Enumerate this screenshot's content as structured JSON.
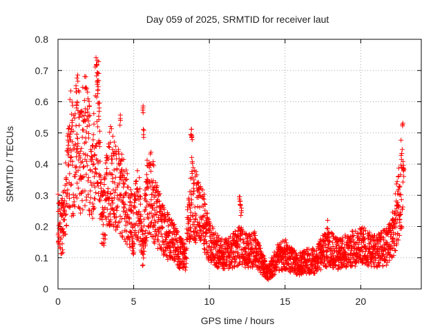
{
  "chart_data": {
    "type": "scatter",
    "title": "Day 059 of 2025, SRMTID for receiver laut",
    "xlabel": "GPS time / hours",
    "ylabel": "SRMTID / TECUs",
    "xlim": [
      0,
      24
    ],
    "ylim": [
      0,
      0.8
    ],
    "xticks": [
      0,
      5,
      10,
      15,
      20
    ],
    "xtick_labels": [
      "0",
      "5",
      "10",
      "15",
      "20"
    ],
    "yticks": [
      0,
      0.1,
      0.2,
      0.3,
      0.4,
      0.5,
      0.6,
      0.7,
      0.8
    ],
    "ytick_labels": [
      "0",
      "0.1",
      "0.2",
      "0.3",
      "0.4",
      "0.5",
      "0.6",
      "0.7",
      "0.8"
    ],
    "grid": true,
    "marker": "+",
    "marker_color": "#ff0000",
    "series": [
      {
        "name": "SRMTID",
        "trend": [
          [
            0.0,
            0.21
          ],
          [
            0.3,
            0.2
          ],
          [
            0.6,
            0.32
          ],
          [
            0.8,
            0.45
          ],
          [
            1.0,
            0.4
          ],
          [
            1.2,
            0.52
          ],
          [
            1.5,
            0.42
          ],
          [
            1.8,
            0.48
          ],
          [
            2.0,
            0.45
          ],
          [
            2.3,
            0.38
          ],
          [
            2.6,
            0.6
          ],
          [
            2.9,
            0.22
          ],
          [
            3.2,
            0.3
          ],
          [
            3.5,
            0.38
          ],
          [
            3.8,
            0.32
          ],
          [
            4.2,
            0.3
          ],
          [
            4.5,
            0.27
          ],
          [
            4.8,
            0.22
          ],
          [
            5.0,
            0.2
          ],
          [
            5.3,
            0.3
          ],
          [
            5.6,
            0.12
          ],
          [
            5.9,
            0.32
          ],
          [
            6.2,
            0.3
          ],
          [
            6.5,
            0.24
          ],
          [
            7.0,
            0.18
          ],
          [
            7.5,
            0.16
          ],
          [
            8.0,
            0.12
          ],
          [
            8.4,
            0.1
          ],
          [
            8.8,
            0.3
          ],
          [
            9.2,
            0.25
          ],
          [
            9.6,
            0.22
          ],
          [
            10.0,
            0.15
          ],
          [
            10.5,
            0.12
          ],
          [
            11.0,
            0.11
          ],
          [
            11.5,
            0.12
          ],
          [
            12.0,
            0.14
          ],
          [
            12.5,
            0.12
          ],
          [
            13.0,
            0.13
          ],
          [
            13.5,
            0.08
          ],
          [
            13.9,
            0.05
          ],
          [
            14.5,
            0.1
          ],
          [
            15.0,
            0.11
          ],
          [
            15.5,
            0.09
          ],
          [
            16.0,
            0.08
          ],
          [
            16.5,
            0.09
          ],
          [
            17.0,
            0.09
          ],
          [
            17.5,
            0.12
          ],
          [
            18.0,
            0.13
          ],
          [
            18.5,
            0.11
          ],
          [
            19.0,
            0.12
          ],
          [
            19.5,
            0.13
          ],
          [
            20.0,
            0.14
          ],
          [
            20.5,
            0.13
          ],
          [
            21.0,
            0.12
          ],
          [
            21.5,
            0.13
          ],
          [
            22.0,
            0.15
          ],
          [
            22.3,
            0.22
          ],
          [
            22.5,
            0.27
          ],
          [
            22.8,
            0.38
          ]
        ],
        "spikes": [
          [
            1.2,
            0.66
          ],
          [
            1.25,
            0.62
          ],
          [
            2.55,
            0.73
          ],
          [
            2.6,
            0.7
          ],
          [
            2.65,
            0.65
          ],
          [
            2.7,
            0.58
          ],
          [
            4.1,
            0.56
          ],
          [
            5.6,
            0.6
          ],
          [
            5.65,
            0.52
          ],
          [
            8.8,
            0.52
          ],
          [
            8.85,
            0.5
          ],
          [
            12.0,
            0.32
          ],
          [
            12.05,
            0.3
          ],
          [
            12.1,
            0.27
          ],
          [
            17.8,
            0.23
          ],
          [
            22.8,
            0.42
          ],
          [
            22.85,
            0.4
          ]
        ]
      }
    ]
  }
}
